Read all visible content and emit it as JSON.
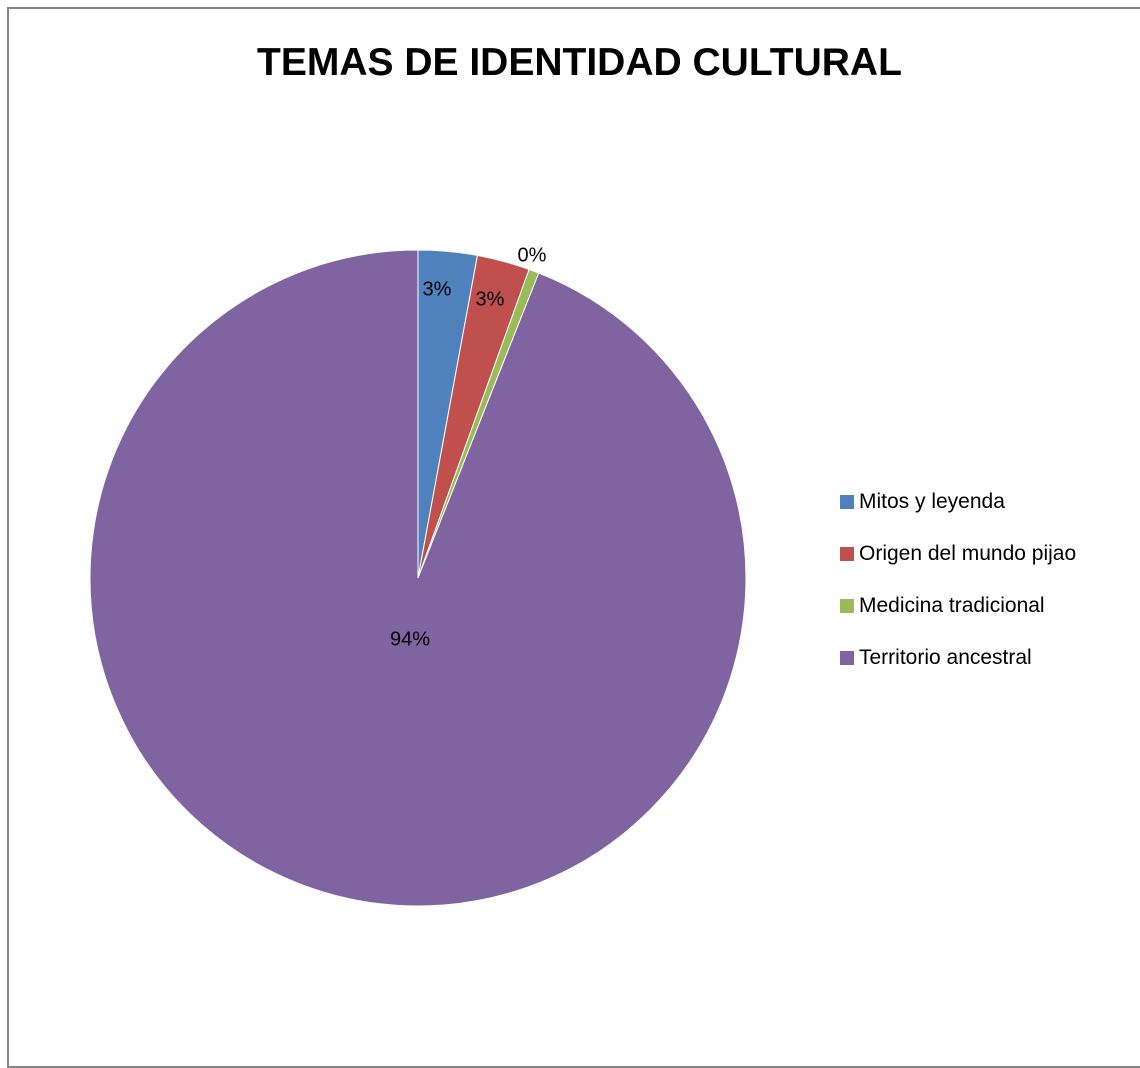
{
  "chart_data": {
    "type": "pie",
    "title": "TEMAS DE IDENTIDAD CULTURAL",
    "categories": [
      "Mitos y leyenda",
      "Origen del mundo pijao",
      "Medicina tradicional",
      "Territorio ancestral"
    ],
    "values": [
      3,
      3,
      0,
      94
    ],
    "data_labels": [
      "3%",
      "3%",
      "0%",
      "94%"
    ],
    "colors": [
      "#4f81bd",
      "#c0504d",
      "#9bbb59",
      "#8064a2"
    ],
    "legend_position": "right",
    "start_angle": "top, clockwise"
  }
}
